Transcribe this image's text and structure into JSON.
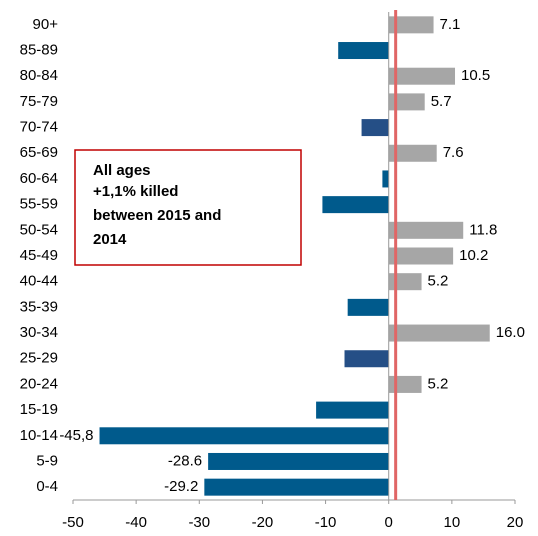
{
  "chart_data": {
    "type": "bar",
    "orientation": "horizontal",
    "categories": [
      "90+",
      "85-89",
      "80-84",
      "75-79",
      "70-74",
      "65-69",
      "60-64",
      "55-59",
      "50-54",
      "45-49",
      "40-44",
      "35-39",
      "30-34",
      "25-29",
      "20-24",
      "15-19",
      "10-14",
      "5-9",
      "0-4"
    ],
    "values": [
      7.1,
      -8,
      10.5,
      5.7,
      -4.3,
      7.6,
      -1,
      -10.5,
      11.8,
      10.2,
      5.2,
      -6.5,
      16.0,
      -7,
      5.2,
      -11.5,
      -45.8,
      -28.6,
      -29.2
    ],
    "value_labels": [
      "7.1",
      null,
      "10.5",
      "5.7",
      null,
      "7.6",
      null,
      null,
      "11.8",
      "10.2",
      "5.2",
      null,
      "16.0",
      null,
      "5.2",
      null,
      "-45,8",
      "-28.6",
      "-29.2"
    ],
    "colors": [
      "#a6a6a6",
      "#005a8c",
      "#a6a6a6",
      "#a6a6a6",
      "#254f86",
      "#a6a6a6",
      "#005a8c",
      "#005a8c",
      "#a6a6a6",
      "#a6a6a6",
      "#a6a6a6",
      "#005a8c",
      "#a6a6a6",
      "#254f86",
      "#a6a6a6",
      "#005a8c",
      "#005a8c",
      "#005a8c",
      "#005a8c"
    ],
    "xlim": [
      -50,
      20
    ],
    "xticks": [
      -50,
      -40,
      -30,
      -20,
      -10,
      0,
      10,
      20
    ],
    "reference_line": {
      "value": 1.1,
      "color": "#e06666"
    },
    "annotation": {
      "title": "All ages",
      "lines": [
        "+1,1% killed",
        "between 2015 and",
        "2014"
      ]
    }
  }
}
